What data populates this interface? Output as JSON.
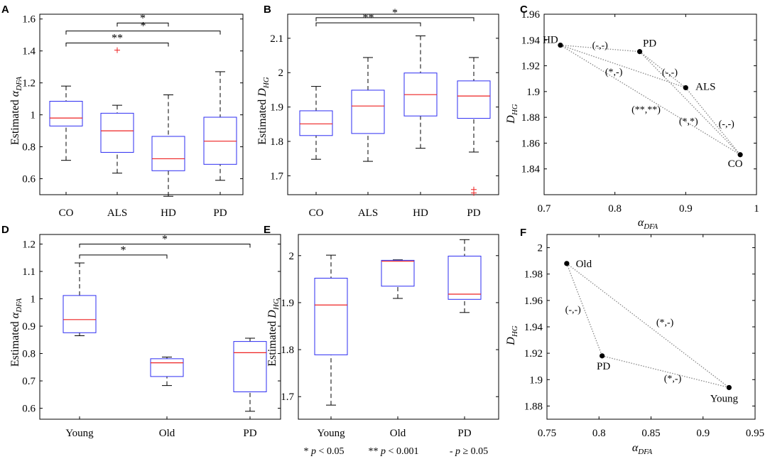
{
  "chart_data": [
    {
      "id": "A",
      "type": "box",
      "ylabel": "Estimated",
      "ylabel_symbol": "α",
      "ylabel_sub": "DFA",
      "ylim": [
        0.5,
        1.63
      ],
      "yticks": [
        0.6,
        0.8,
        1,
        1.2,
        1.4,
        1.6
      ],
      "ytick_labels": [
        "0.6",
        "0.8",
        "1",
        "1.2",
        "1.4",
        "1.6"
      ],
      "categories": [
        "CO",
        "ALS",
        "HD",
        "PD"
      ],
      "boxes": [
        {
          "min": 0.715,
          "q1": 0.93,
          "median": 0.98,
          "q3": 1.085,
          "max": 1.18,
          "outliers": []
        },
        {
          "min": 0.635,
          "q1": 0.765,
          "median": 0.9,
          "q3": 1.01,
          "max": 1.06,
          "outliers": [
            1.405
          ]
        },
        {
          "min": 0.49,
          "q1": 0.65,
          "median": 0.725,
          "q3": 0.865,
          "max": 1.125,
          "outliers": []
        },
        {
          "min": 0.59,
          "q1": 0.69,
          "median": 0.835,
          "q3": 0.985,
          "max": 1.27,
          "outliers": []
        }
      ],
      "brackets": [
        {
          "from": 0,
          "to": 2,
          "level": 1.45,
          "label": "**"
        },
        {
          "from": 0,
          "to": 3,
          "level": 1.525,
          "label": "*"
        },
        {
          "from": 1,
          "to": 2,
          "level": 1.575,
          "label": "*"
        }
      ]
    },
    {
      "id": "B",
      "type": "box",
      "ylabel": "Estimated",
      "ylabel_symbol": "D",
      "ylabel_sub": "HG",
      "ylim": [
        1.645,
        2.17
      ],
      "yticks": [
        1.7,
        1.8,
        1.9,
        2,
        2.1
      ],
      "ytick_labels": [
        "1.7",
        "1.8",
        "1.9",
        "2",
        "2.1"
      ],
      "categories": [
        "CO",
        "ALS",
        "HD",
        "PD"
      ],
      "boxes": [
        {
          "min": 1.748,
          "q1": 1.817,
          "median": 1.851,
          "q3": 1.889,
          "max": 1.96,
          "outliers": []
        },
        {
          "min": 1.742,
          "q1": 1.823,
          "median": 1.903,
          "q3": 1.949,
          "max": 2.044,
          "outliers": []
        },
        {
          "min": 1.78,
          "q1": 1.874,
          "median": 1.936,
          "q3": 1.999,
          "max": 2.107,
          "outliers": []
        },
        {
          "min": 1.769,
          "q1": 1.867,
          "median": 1.932,
          "q3": 1.976,
          "max": 2.044,
          "outliers": [
            1.66,
            1.65
          ]
        }
      ],
      "brackets": [
        {
          "from": 0,
          "to": 2,
          "level": 2.145,
          "label": "**"
        },
        {
          "from": 0,
          "to": 3,
          "level": 2.16,
          "label": "*"
        }
      ]
    },
    {
      "id": "C",
      "type": "scatter",
      "xlabel_symbol": "α",
      "xlabel_sub": "DFA",
      "ylabel_symbol": "D",
      "ylabel_sub": "HG",
      "xlim": [
        0.7,
        1
      ],
      "ylim": [
        1.82,
        1.96
      ],
      "xticks": [
        0.7,
        0.8,
        0.9,
        1
      ],
      "xtick_labels": [
        "0.7",
        "0.8",
        "0.9",
        "1"
      ],
      "yticks": [
        1.84,
        1.86,
        1.88,
        1.9,
        1.92,
        1.94,
        1.96
      ],
      "ytick_labels": [
        "1.84",
        "1.86",
        "1.88",
        "1.9",
        "1.92",
        "1.94",
        "1.96"
      ],
      "points": [
        {
          "label": "HD",
          "x": 0.723,
          "y": 1.936
        },
        {
          "label": "PD",
          "x": 0.835,
          "y": 1.931
        },
        {
          "label": "ALS",
          "x": 0.9,
          "y": 1.903
        },
        {
          "label": "CO",
          "x": 0.977,
          "y": 1.851
        }
      ],
      "pairs": [
        {
          "a": 0,
          "b": 1,
          "label": "(-,-)"
        },
        {
          "a": 0,
          "b": 2,
          "label": "(*,-)"
        },
        {
          "a": 0,
          "b": 3,
          "label": "(**,**)"
        },
        {
          "a": 1,
          "b": 2,
          "label": "(-,-)"
        },
        {
          "a": 1,
          "b": 3,
          "label": "(*,*)"
        },
        {
          "a": 2,
          "b": 3,
          "label": "(-,-)"
        }
      ]
    },
    {
      "id": "D",
      "type": "box",
      "ylabel": "Estimated",
      "ylabel_symbol": "α",
      "ylabel_sub": "DFA",
      "ylim": [
        0.56,
        1.235
      ],
      "yticks": [
        0.6,
        0.7,
        0.8,
        0.9,
        1,
        1.1,
        1.2
      ],
      "ytick_labels": [
        "0.6",
        "0.7",
        "0.8",
        "0.9",
        "1",
        "1.1",
        "1.2"
      ],
      "categories": [
        "Young",
        "Old",
        "PD"
      ],
      "boxes": [
        {
          "min": 0.865,
          "q1": 0.876,
          "median": 0.924,
          "q3": 1.012,
          "max": 1.131,
          "outliers": []
        },
        {
          "min": 0.683,
          "q1": 0.716,
          "median": 0.766,
          "q3": 0.781,
          "max": 0.787,
          "outliers": []
        },
        {
          "min": 0.589,
          "q1": 0.66,
          "median": 0.803,
          "q3": 0.844,
          "max": 0.856,
          "outliers": []
        }
      ],
      "brackets": [
        {
          "from": 0,
          "to": 1,
          "level": 1.16,
          "label": "*"
        },
        {
          "from": 0,
          "to": 2,
          "level": 1.2,
          "label": "*"
        }
      ]
    },
    {
      "id": "E",
      "type": "box",
      "ylabel": "Estimated",
      "ylabel_symbol": "D",
      "ylabel_sub": "HG",
      "ylim": [
        1.652,
        2.045
      ],
      "yticks": [
        1.7,
        1.8,
        1.9,
        2
      ],
      "ytick_labels": [
        "1.7",
        "1.8",
        "1.9",
        "2"
      ],
      "categories": [
        "Young",
        "Old",
        "PD"
      ],
      "boxes": [
        {
          "min": 1.682,
          "q1": 1.789,
          "median": 1.895,
          "q3": 1.952,
          "max": 2.001,
          "outliers": []
        },
        {
          "min": 1.909,
          "q1": 1.935,
          "median": 1.988,
          "q3": 1.99,
          "max": 1.991,
          "outliers": []
        },
        {
          "min": 1.879,
          "q1": 1.907,
          "median": 1.918,
          "q3": 1.999,
          "max": 2.034,
          "outliers": []
        }
      ],
      "brackets": []
    },
    {
      "id": "F",
      "type": "scatter",
      "xlabel_symbol": "α",
      "xlabel_sub": "DFA",
      "ylabel_symbol": "D",
      "ylabel_sub": "HG",
      "xlim": [
        0.75,
        0.95
      ],
      "ylim": [
        1.87,
        2.01
      ],
      "xticks": [
        0.75,
        0.8,
        0.85,
        0.9,
        0.95
      ],
      "xtick_labels": [
        "0.75",
        "0.8",
        "0.85",
        "0.9",
        "0.95"
      ],
      "yticks": [
        1.88,
        1.9,
        1.92,
        1.94,
        1.96,
        1.98,
        2
      ],
      "ytick_labels": [
        "1.88",
        "1.9",
        "1.92",
        "1.94",
        "1.96",
        "1.98",
        "2"
      ],
      "points": [
        {
          "label": "Old",
          "x": 0.769,
          "y": 1.988
        },
        {
          "label": "PD",
          "x": 0.803,
          "y": 1.918
        },
        {
          "label": "Young",
          "x": 0.925,
          "y": 1.894
        }
      ],
      "pairs": [
        {
          "a": 0,
          "b": 1,
          "label": "(-,-)"
        },
        {
          "a": 0,
          "b": 2,
          "label": "(*,-)"
        },
        {
          "a": 1,
          "b": 2,
          "label": "(*,-)"
        }
      ]
    }
  ],
  "legend": {
    "star": "*",
    "star_p": "p",
    "star_cmp": "< 0.05",
    "dstar": "**",
    "dstar_p": "p",
    "dstar_cmp": "< 0.001",
    "dash": "-",
    "dash_p": "p",
    "dash_cmp": "≥ 0.05"
  },
  "colors": {
    "box": "#2d2df2",
    "median": "#ee2222",
    "outlier": "#ee2222",
    "whisker": "#000000",
    "pair_line": "#888888"
  }
}
